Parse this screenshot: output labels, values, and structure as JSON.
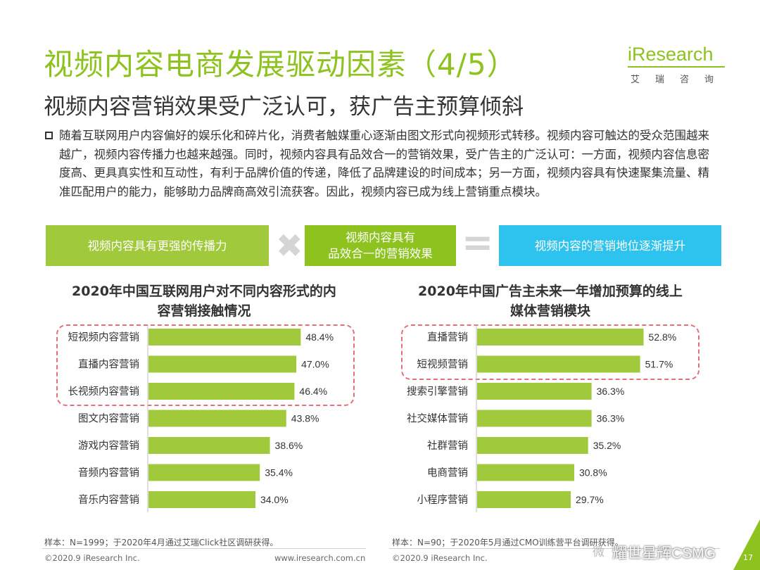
{
  "title": "视频内容电商发展驱动因素（4/5）",
  "subtitle": "视频内容营销效果受广泛认可，获广告主预算倾斜",
  "logo": {
    "text": "iResearch",
    "cn": "艾瑞咨询"
  },
  "bullet": "随着互联网用户内容偏好的娱乐化和碎片化，消费者触媒重心逐渐由图文形式向视频形式转移。视频内容可触达的受众范围越来越广，视频内容传播力也越来越强。同时，视频内容具有品效合一的营销效果，受广告主的广泛认可：一方面，视频内容信息密度高、更具真实性和互动性，有利于品牌价值的传递，降低了品牌建设的时间成本；另一方面，视频内容具有快速聚集流量、精准匹配用户的能力，能够助力品牌商高效引流获客。因此，视频内容已成为线上营销重点模块。",
  "formula": {
    "box1": "视频内容具有更强的传播力",
    "box2_line1": "视频内容具有",
    "box2_line2": "品效合一的营销效果",
    "box3": "视频内容的营销地位逐渐提升",
    "op_times": "✖",
    "op_equals": "="
  },
  "chart_data": [
    {
      "type": "bar",
      "orientation": "horizontal",
      "title_line1": "2020年中国互联网用户对不同内容形式的内",
      "title_line2": "容营销接触情况",
      "categories": [
        "短视频内容营销",
        "直播内容营销",
        "长视频内容营销",
        "图文内容营销",
        "游戏内容营销",
        "音频内容营销",
        "音乐内容营销"
      ],
      "values": [
        48.4,
        47.0,
        46.4,
        43.8,
        38.6,
        35.4,
        34.0
      ],
      "labels": [
        "48.4%",
        "47.0%",
        "46.4%",
        "43.8%",
        "38.6%",
        "35.4%",
        "34.0%"
      ],
      "unit": "%",
      "color": "#a0c93c",
      "highlighted": [
        0,
        1,
        2
      ]
    },
    {
      "type": "bar",
      "orientation": "horizontal",
      "title_line1": "2020年中国广告主未来一年增加预算的线上",
      "title_line2": "媒体营销模块",
      "categories": [
        "直播营销",
        "短视频营销",
        "搜索引擎营销",
        "社交媒体营销",
        "社群营销",
        "电商营销",
        "小程序营销"
      ],
      "values": [
        52.8,
        51.7,
        36.3,
        36.3,
        35.2,
        30.8,
        29.7
      ],
      "labels": [
        "52.8%",
        "51.7%",
        "36.3%",
        "36.3%",
        "35.2%",
        "30.8%",
        "29.7%"
      ],
      "unit": "%",
      "color": "#a0c93c",
      "highlighted": [
        0,
        1
      ]
    }
  ],
  "footnotes": {
    "left": "样本：N=1999；于2020年4月通过艾瑞Click社区调研获得。",
    "right": "样本：N=90；于2020年5月通过CMO训练营平台调研获得。"
  },
  "copyright": {
    "left": "©2020.9 iResearch Inc.",
    "left_url": "www.iresearch.com.cn",
    "right": "©2020.9 iResearch Inc."
  },
  "watermark": "耀世星辉CSMG",
  "weibo": "微",
  "page_number": "17"
}
